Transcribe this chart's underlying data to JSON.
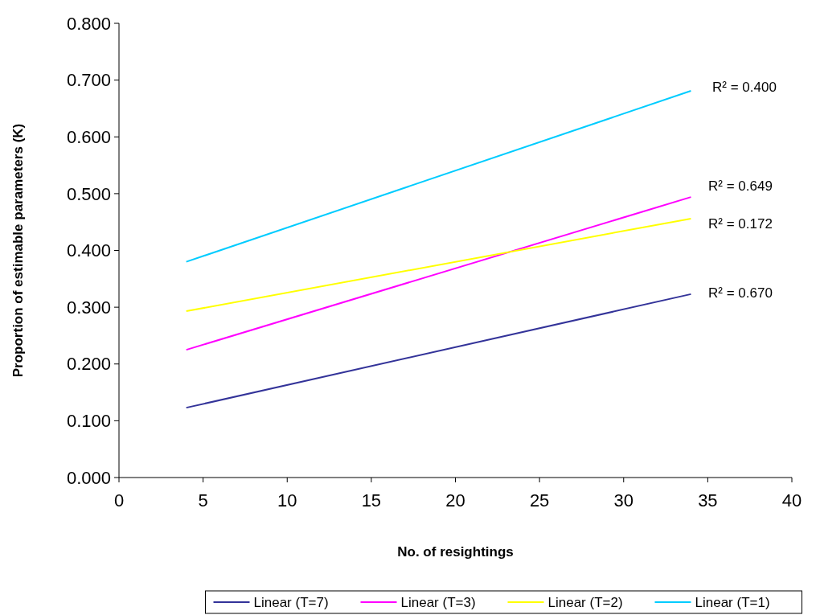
{
  "chart_data": {
    "type": "line",
    "xlabel": "No. of resightings",
    "ylabel": "Proportion of estimable parameters (K)",
    "xlim": [
      0,
      40
    ],
    "xticks": [
      0,
      5,
      10,
      15,
      20,
      25,
      30,
      35,
      40
    ],
    "ylim": [
      0,
      0.8
    ],
    "yticks": [
      {
        "value": 0,
        "label": "0.000"
      },
      {
        "value": 0.1,
        "label": "0.100"
      },
      {
        "value": 0.2,
        "label": "0.200"
      },
      {
        "value": 0.3,
        "label": "0.300"
      },
      {
        "value": 0.4,
        "label": "0.400"
      },
      {
        "value": 0.5,
        "label": "0.500"
      },
      {
        "value": 0.6,
        "label": "0.600"
      },
      {
        "value": 0.7,
        "label": "0.700"
      },
      {
        "value": 0.8,
        "label": "0.800"
      }
    ],
    "x": [
      4,
      34
    ],
    "series": [
      {
        "name": "Linear (T=7)",
        "color": "#333399",
        "values": [
          0.123,
          0.323
        ]
      },
      {
        "name": "Linear (T=3)",
        "color": "#ff00ff",
        "values": [
          0.225,
          0.494
        ]
      },
      {
        "name": "Linear (T=2)",
        "color": "#ffff00",
        "values": [
          0.293,
          0.456
        ]
      },
      {
        "name": "Linear (T=1)",
        "color": "#00ccff",
        "values": [
          0.38,
          0.681
        ]
      }
    ],
    "annotations": [
      "R² = 0.400",
      "R² = 0.649",
      "R² = 0.172",
      "R² = 0.670"
    ],
    "marker": "none",
    "line_style": "solid",
    "grid": false,
    "legend": "bottom"
  }
}
